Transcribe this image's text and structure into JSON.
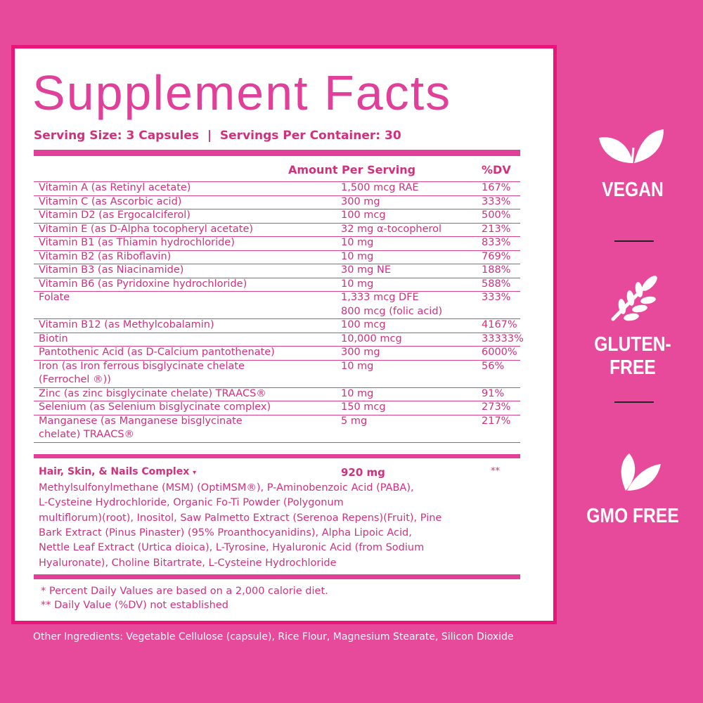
{
  "label": {
    "title": "Supplement Facts",
    "serving": "Serving Size: 3 Capsules  |  Servings Per Container: 30",
    "header": {
      "amount": "Amount Per Serving",
      "dv": "%DV"
    },
    "rows": [
      {
        "name": [
          "Vitamin A (as Retinyl acetate)"
        ],
        "amount": [
          "1,500 mcg RAE"
        ],
        "dv": "167%"
      },
      {
        "name": [
          "Vitamin C (as Ascorbic acid)"
        ],
        "amount": [
          "300 mg"
        ],
        "dv": "333%"
      },
      {
        "name": [
          "Vitamin D2 (as Ergocalciferol)"
        ],
        "amount": [
          "100 mcg"
        ],
        "dv": "500%"
      },
      {
        "name": [
          "Vitamin E (as D-Alpha tocopheryl acetate)"
        ],
        "amount": [
          "32 mg α-tocopherol"
        ],
        "dv": "213%"
      },
      {
        "name": [
          "Vitamin B1 (as Thiamin hydrochloride)"
        ],
        "amount": [
          "10 mg"
        ],
        "dv": "833%"
      },
      {
        "name": [
          "Vitamin B2 (as Riboflavin)"
        ],
        "amount": [
          "10 mg"
        ],
        "dv": "769%"
      },
      {
        "name": [
          "Vitamin B3 (as Niacinamide)"
        ],
        "amount": [
          "30 mg NE"
        ],
        "dv": "188%"
      },
      {
        "name": [
          "Vitamin B6 (as Pyridoxine hydrochloride)"
        ],
        "amount": [
          "10 mg"
        ],
        "dv": "588%"
      },
      {
        "name": [
          "Folate"
        ],
        "amount": [
          "1,333 mcg DFE",
          "800 mcg (folic acid)"
        ],
        "dv": "333%"
      },
      {
        "name": [
          "Vitamin B12 (as Methylcobalamin)"
        ],
        "amount": [
          "100 mcg"
        ],
        "dv": "4167%"
      },
      {
        "name": [
          "Biotin"
        ],
        "amount": [
          "10,000 mcg"
        ],
        "dv": "33333%"
      },
      {
        "name": [
          "Pantothenic Acid (as D-Calcium pantothenate)"
        ],
        "amount": [
          "300 mg"
        ],
        "dv": "6000%"
      },
      {
        "name": [
          "Iron (as Iron ferrous bisglycinate chelate",
          "(Ferrochel ®))"
        ],
        "amount": [
          "10 mg"
        ],
        "dv": "56%"
      },
      {
        "name": [
          "Zinc (as zinc bisglycinate chelate) TRAACS®"
        ],
        "amount": [
          "10 mg"
        ],
        "dv": "91%"
      },
      {
        "name": [
          "Selenium (as Selenium bisglycinate complex)"
        ],
        "amount": [
          "150 mcg"
        ],
        "dv": "273%"
      },
      {
        "name": [
          "Manganese (as Manganese bisglycinate",
          "chelate) TRAACS®"
        ],
        "amount": [
          "5 mg"
        ],
        "dv": "217%"
      }
    ],
    "complex": {
      "name": "Hair, Skin, & Nails Complex",
      "marker": "▾",
      "amount": "920 mg",
      "dv": "**",
      "ingredients": [
        "Methylsulfonylmethane (MSM) (OptiMSM®), P-Aminobenzoic Acid (PABA),",
        "L-Cysteine Hydrochloride,  Organic Fo-Ti Powder (Polygonum",
        "multiflorum)(root), Inositol, Saw Palmetto Extract (Serenoa Repens)(Fruit), Pine",
        "Bark Extract (Pinus Pinaster) (95% Proanthocyanidins), Alpha Lipoic Acid,",
        "Nettle Leaf Extract (Urtica dioica), L-Tyrosine, Hyaluronic Acid (from Sodium",
        "Hyaluronate), Choline Bitartrate,  L-Cysteine Hydrochloride"
      ]
    },
    "footnotes": [
      "* Percent Daily Values are based on a 2,000 calorie diet.",
      "** Daily Value (%DV)  not established"
    ]
  },
  "other_ingredients": "Other Ingredients: Vegetable Cellulose (capsule), Rice Flour, Magnesium Stearate, Silicon Dioxide",
  "badges": [
    "VEGAN",
    "GLUTEN-FREE",
    "GMO FREE"
  ]
}
